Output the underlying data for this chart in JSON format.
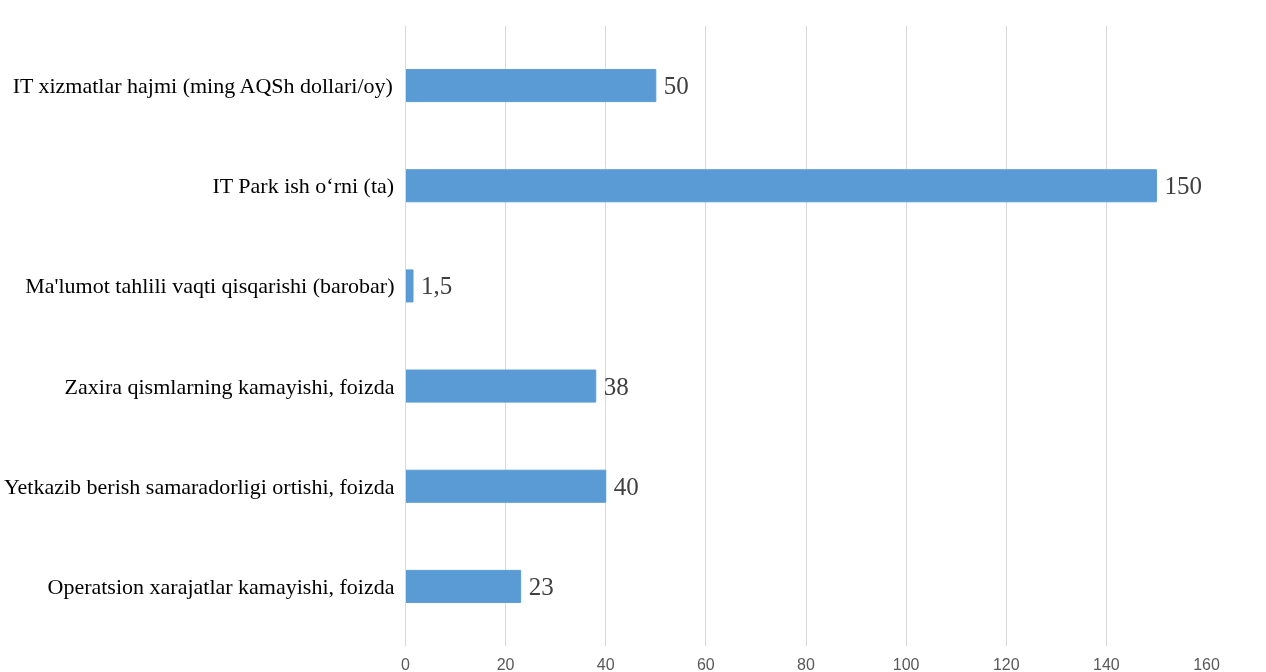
{
  "chart_data": {
    "type": "bar",
    "orientation": "horizontal",
    "categories": [
      "IT xizmatlar hajmi (ming AQSh dollari/oy)",
      "IT Park ish o‘rni (ta)",
      "Ma'lumot tahlili vaqti qisqarishi (barobar)",
      "Zaxira qismlarning kamayishi, foizda",
      "Yetkazib berish samaradorligi ortishi, foizda",
      "Operatsion xarajatlar kamayishi, foizda"
    ],
    "values": [
      50,
      150,
      1.5,
      38,
      40,
      23
    ],
    "value_labels": [
      "50",
      "150",
      "1,5",
      "38",
      "40",
      "23"
    ],
    "color": "#5b9bd5",
    "xlim": [
      0,
      160
    ],
    "xticks": [
      0,
      20,
      40,
      60,
      80,
      100,
      120,
      140,
      160
    ],
    "grid": "x"
  }
}
